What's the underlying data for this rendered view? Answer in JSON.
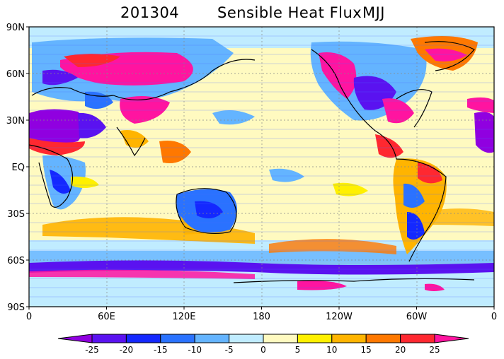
{
  "title": {
    "date": "201304",
    "variable": "Sensible Heat Flux",
    "season": "MJJ"
  },
  "chart_data": {
    "type": "heatmap",
    "title": "201304 Sensible Heat Flux MJJ",
    "lat_ticks": [
      "90N",
      "60N",
      "30N",
      "EQ",
      "30S",
      "60S",
      "90S"
    ],
    "lon_ticks": [
      "0",
      "60E",
      "120E",
      "180",
      "120W",
      "60W",
      "0"
    ],
    "colorbar": {
      "levels": [
        -25,
        -20,
        -15,
        -10,
        -5,
        0,
        5,
        10,
        15,
        20,
        25
      ],
      "labels": [
        "-25",
        "-20",
        "-15",
        "-10",
        "-5",
        "0",
        "5",
        "10",
        "15",
        "20",
        "25"
      ],
      "colors": [
        "#9000e0",
        "#5a12f0",
        "#1428ff",
        "#2a72ff",
        "#64b4ff",
        "#c0ecff",
        "#fffac0",
        "#fff000",
        "#ffb400",
        "#ff7800",
        "#ff2830",
        "#ff14a0"
      ]
    },
    "grid": true,
    "legend": "bottom"
  }
}
